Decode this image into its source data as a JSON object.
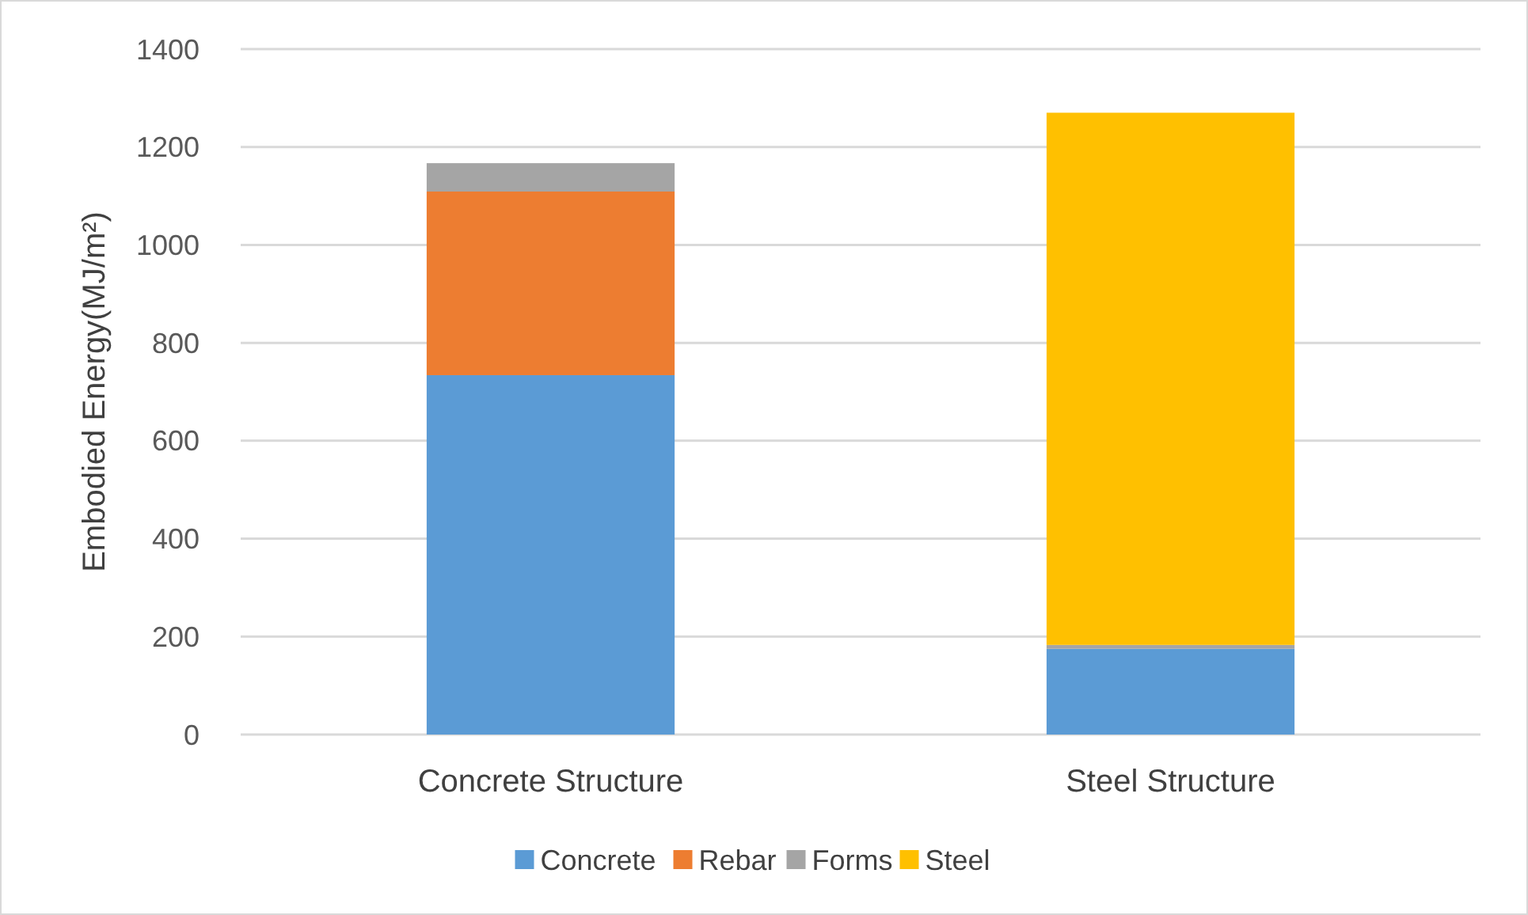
{
  "chart_data": {
    "type": "bar",
    "stacked": true,
    "ylabel": "Embodied Energy(MJ/m²)",
    "categories": [
      "Concrete Structure",
      "Steel Structure"
    ],
    "series": [
      {
        "name": "Concrete",
        "color": "#5b9bd5",
        "values": [
          734,
          175
        ]
      },
      {
        "name": "Rebar",
        "color": "#ed7d31",
        "values": [
          375,
          0
        ]
      },
      {
        "name": "Forms",
        "color": "#a5a5a5",
        "values": [
          58,
          8
        ]
      },
      {
        "name": "Steel",
        "color": "#ffc000",
        "values": [
          0,
          1087
        ]
      }
    ],
    "ylim": [
      0,
      1400
    ],
    "yticks": [
      0,
      200,
      400,
      600,
      800,
      1000,
      1200,
      1400
    ],
    "grid": "y",
    "legend": "bottom"
  }
}
